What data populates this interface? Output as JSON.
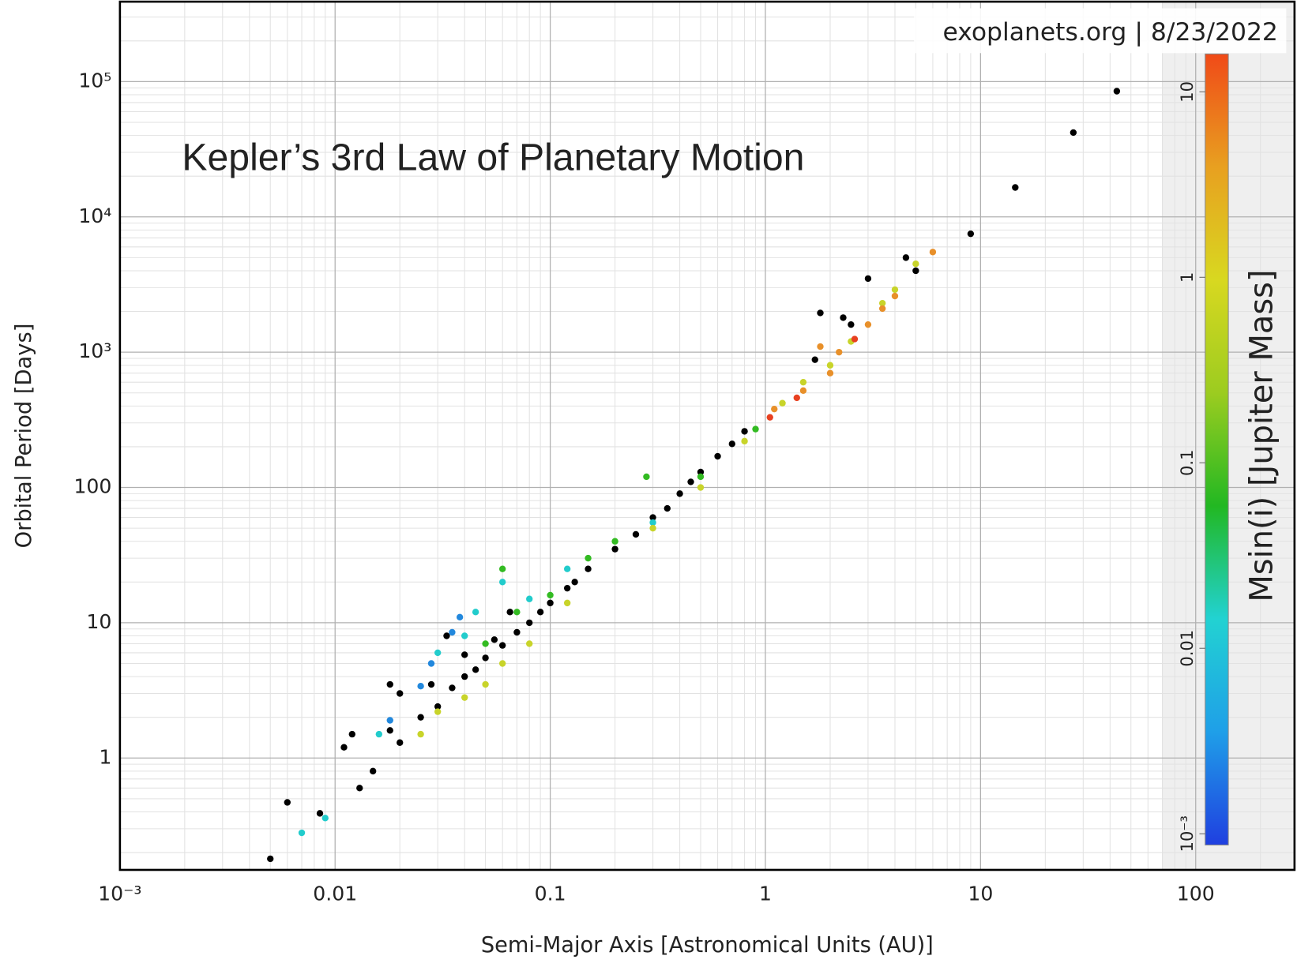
{
  "chart_data": {
    "type": "scatter",
    "xlabel": "Semi-Major Axis [Astronomical Units (AU)]",
    "ylabel": "Orbital Period [Days]",
    "annotation": "Kepler’s 3rd Law of Planetary Motion",
    "watermark": "exoplanets.org | 8/23/2022",
    "log_x": true,
    "log_y": true,
    "grid": true,
    "xlim": [
      0.001,
      288
    ],
    "ylim": [
      0.149,
      390000
    ],
    "xticks": [
      {
        "value": 0.001,
        "label": "10⁻³"
      },
      0.01,
      0.1,
      1,
      10,
      100
    ],
    "yticks": [
      1,
      10,
      100,
      {
        "value": 1000,
        "label": "10³"
      },
      {
        "value": 10000,
        "label": "10⁴"
      },
      {
        "value": 100000,
        "label": "10⁵"
      }
    ],
    "colorbar": {
      "label": "Msin(i) [Jupiter Mass]",
      "lim": [
        0.00087,
        16
      ],
      "ticks": [
        {
          "value": 0.001,
          "label": "10⁻³"
        },
        0.01,
        0.1,
        1,
        10
      ],
      "colors": [
        "#1f3fe0",
        "#1f9fe8",
        "#22d2d2",
        "#22b822",
        "#9ccc20",
        "#d8d820",
        "#e8a020",
        "#f04a18"
      ]
    },
    "series": [
      {
        "color": "#000000",
        "x": [
          0.005,
          0.006,
          0.0085,
          0.011,
          0.012,
          0.013,
          0.015,
          0.018,
          0.02,
          0.025,
          0.03,
          0.035,
          0.04,
          0.045,
          0.05,
          0.06,
          0.07,
          0.08,
          0.09,
          0.1,
          0.12,
          0.15,
          0.2,
          0.25,
          0.3,
          0.4,
          0.5,
          0.6,
          0.7,
          0.8,
          0.033,
          0.04,
          0.055,
          0.018,
          0.02,
          1.8,
          2.3,
          2.5,
          3,
          4.5,
          5,
          9,
          14.5,
          27,
          43,
          0.028,
          0.065,
          0.13,
          0.35,
          0.45,
          1.7
        ],
        "y": [
          0.18,
          0.47,
          0.39,
          1.2,
          1.5,
          0.6,
          0.8,
          1.6,
          1.3,
          2.0,
          2.4,
          3.3,
          4.0,
          4.5,
          5.5,
          6.8,
          8.5,
          10,
          12,
          14,
          18,
          25,
          35,
          45,
          60,
          90,
          130,
          170,
          210,
          260,
          8,
          5.8,
          7.5,
          3.5,
          3.0,
          1950,
          1800,
          1600,
          3500,
          5000,
          4000,
          7500,
          16500,
          42000,
          85000,
          3.5,
          12,
          20,
          70,
          110,
          880
        ]
      },
      {
        "color": "#22cccc",
        "x": [
          0.007,
          0.009,
          0.016,
          0.04,
          0.045,
          0.06,
          0.08,
          0.03,
          0.12,
          0.3
        ],
        "y": [
          0.28,
          0.36,
          1.5,
          8,
          12,
          20,
          15,
          6,
          25,
          55
        ]
      },
      {
        "color": "#2288dd",
        "x": [
          0.035,
          0.038,
          0.025,
          0.018,
          0.028
        ],
        "y": [
          8.5,
          11,
          3.4,
          1.9,
          5
        ]
      },
      {
        "color": "#33bb22",
        "x": [
          0.05,
          0.07,
          0.1,
          0.15,
          0.2,
          0.5,
          0.9,
          0.28,
          0.06
        ],
        "y": [
          7,
          12,
          16,
          30,
          40,
          120,
          270,
          120,
          25
        ]
      },
      {
        "color": "#c8d42a",
        "x": [
          0.025,
          0.03,
          0.04,
          0.05,
          0.06,
          0.08,
          0.12,
          0.3,
          0.5,
          0.8,
          1.2,
          2,
          2.5,
          3.5,
          4,
          5,
          1.5
        ],
        "y": [
          1.5,
          2.2,
          2.8,
          3.5,
          5,
          7,
          14,
          50,
          100,
          220,
          420,
          800,
          1200,
          2300,
          2900,
          4500,
          600
        ]
      },
      {
        "color": "#e8902a",
        "x": [
          1.1,
          1.5,
          2,
          2.2,
          3,
          3.5,
          6,
          1.8,
          4
        ],
        "y": [
          380,
          520,
          700,
          1000,
          1600,
          2100,
          5500,
          1100,
          2600
        ]
      },
      {
        "color": "#e84020",
        "x": [
          1.05,
          1.4,
          2.6
        ],
        "y": [
          330,
          460,
          1250
        ]
      }
    ]
  }
}
